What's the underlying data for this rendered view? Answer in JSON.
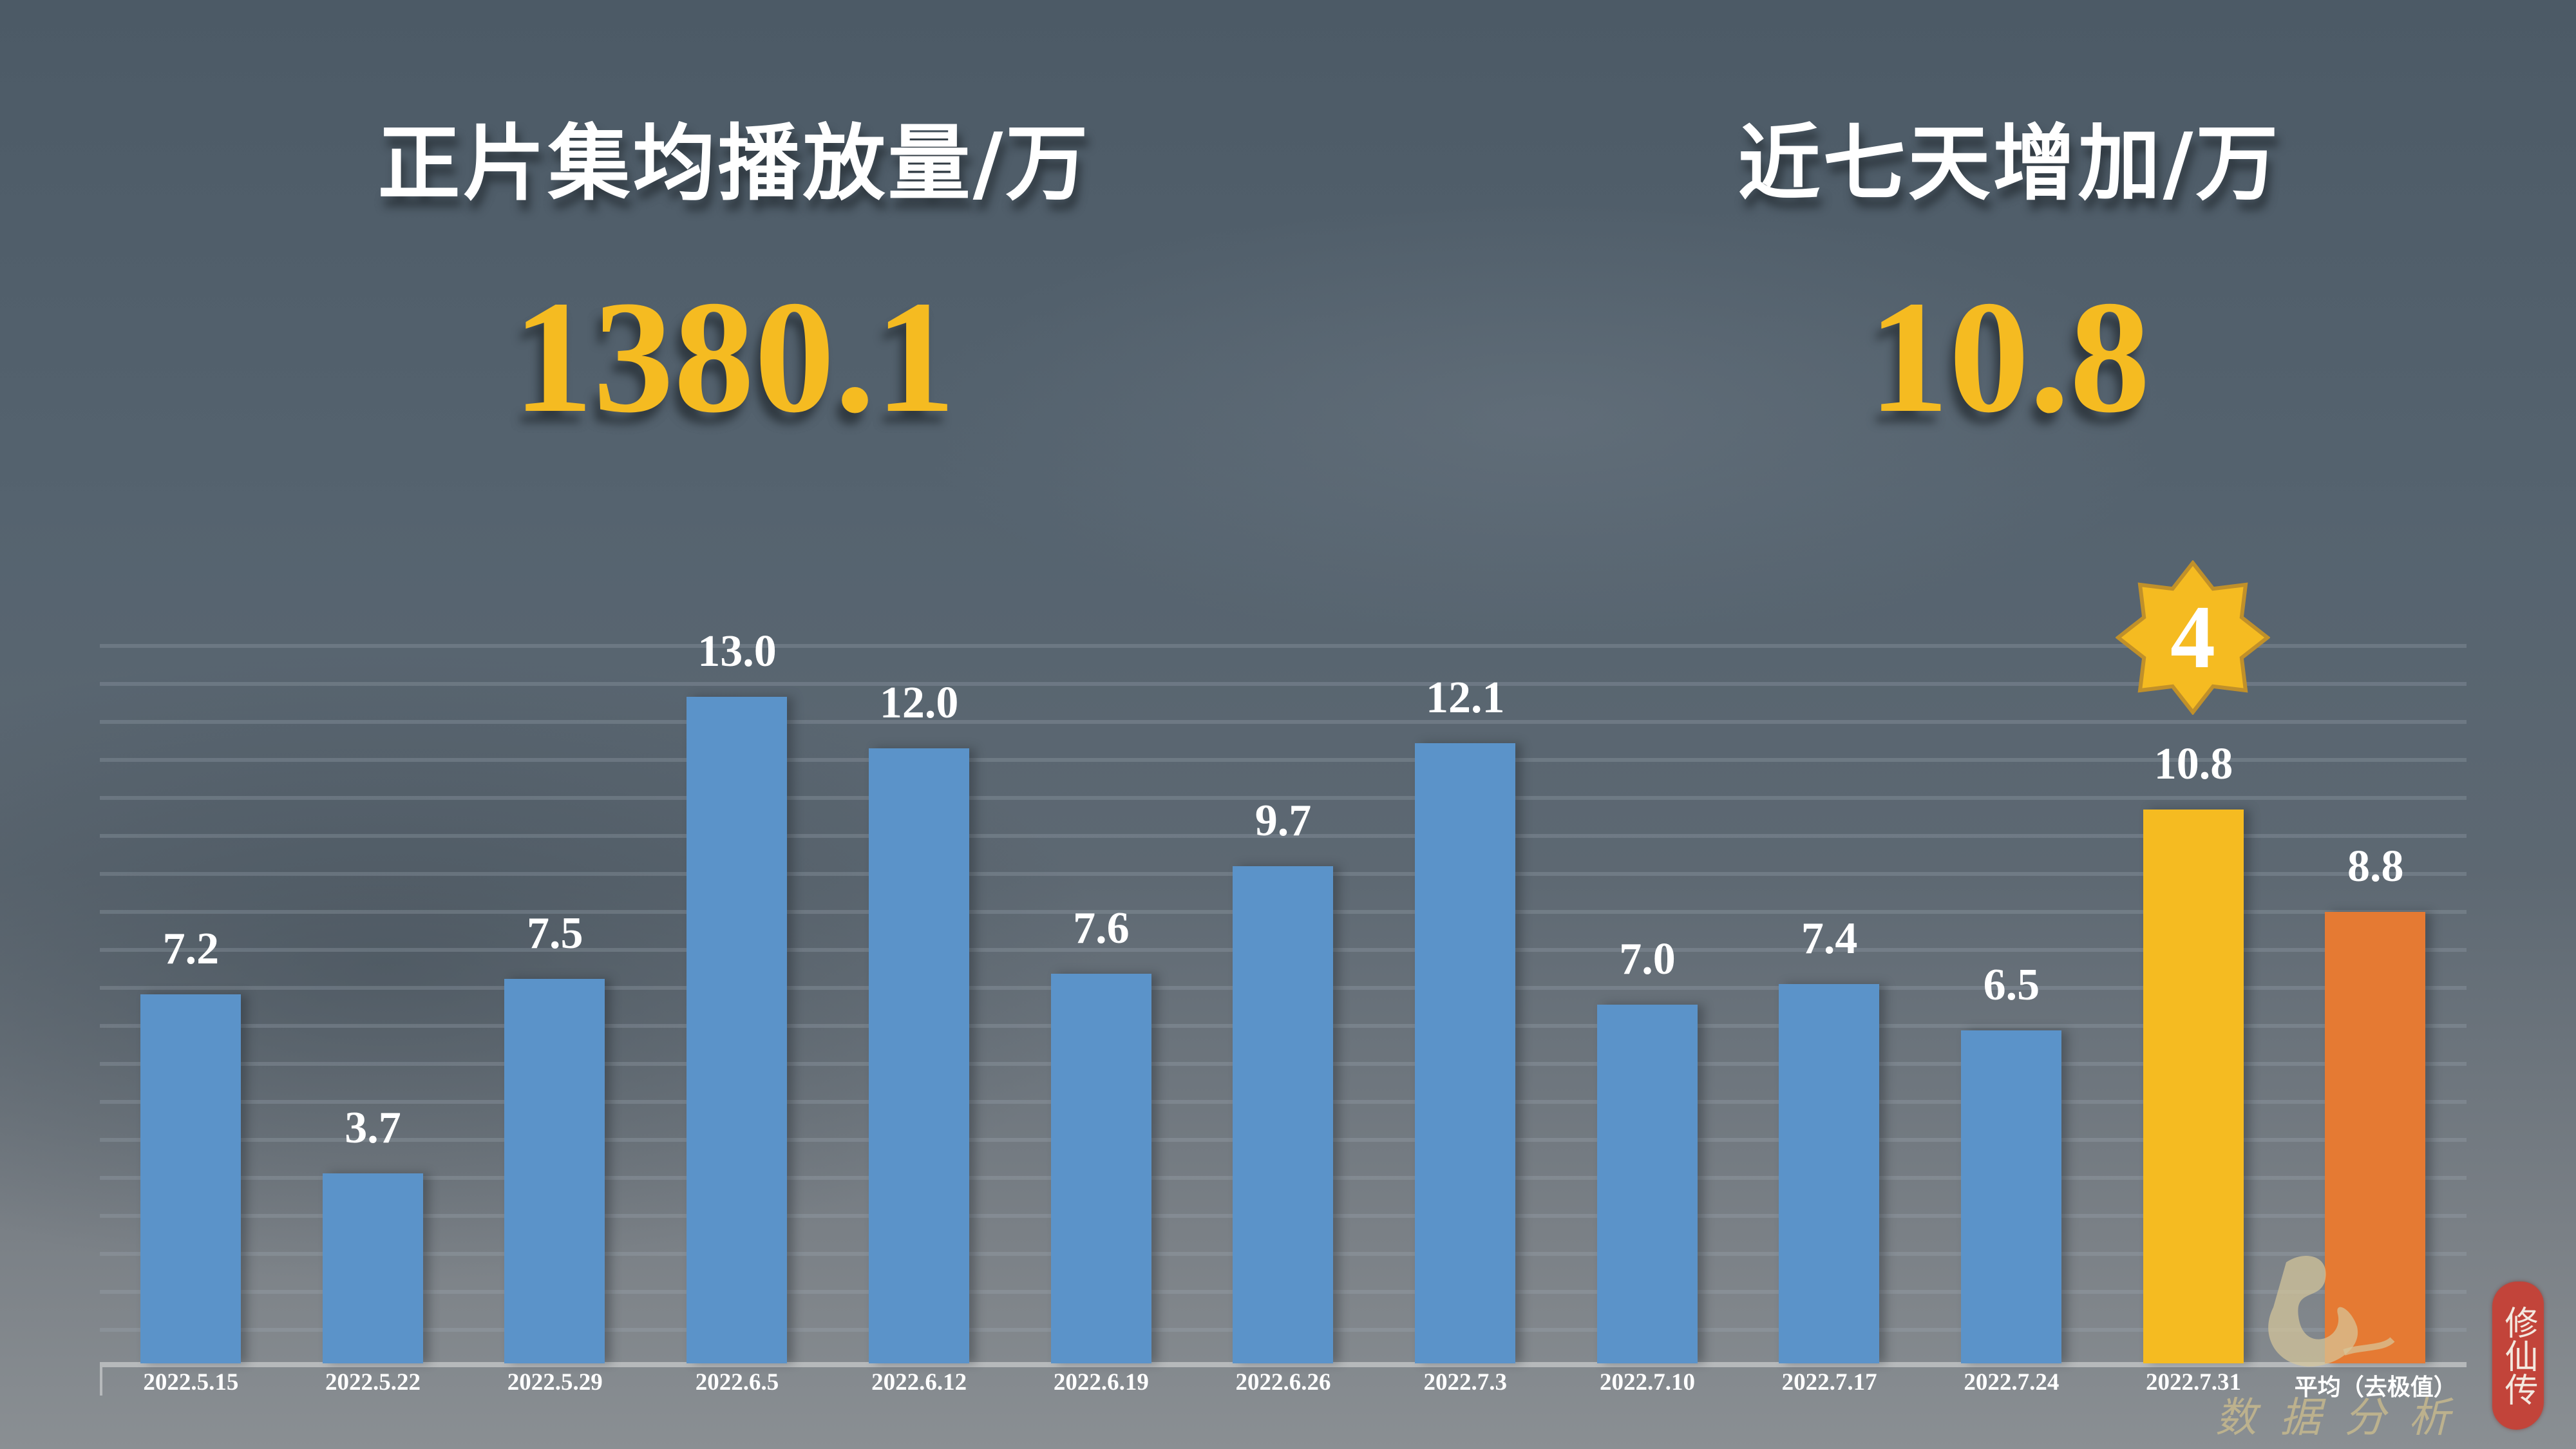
{
  "stats": {
    "left": {
      "title": "正片集均播放量/万",
      "value": "1380.1"
    },
    "right": {
      "title": "近七天增加/万",
      "value": "10.8"
    }
  },
  "colors": {
    "bar_default": "#5b93c9",
    "bar_highlight": "#f5bb21",
    "bar_average": "#e57a33",
    "value_accent": "#f5bb21",
    "badge_fill": "#f5bb21",
    "badge_stroke": "#c0902a"
  },
  "rank_badge": {
    "value": "4",
    "icon": "eight-point-star-icon"
  },
  "watermark": {
    "text": "数据分析",
    "seal_text": "修仙传"
  },
  "chart_data": {
    "type": "bar",
    "title": "",
    "xlabel": "",
    "ylabel": "",
    "ylim": [
      0,
      14
    ],
    "grid": true,
    "legend": null,
    "categories": [
      "2022.5.15",
      "2022.5.22",
      "2022.5.29",
      "2022.6.5",
      "2022.6.12",
      "2022.6.19",
      "2022.6.26",
      "2022.7.3",
      "2022.7.10",
      "2022.7.17",
      "2022.7.24",
      "2022.7.31",
      "平均（去极值）"
    ],
    "values": [
      7.2,
      3.7,
      7.5,
      13.0,
      12.0,
      7.6,
      9.7,
      12.1,
      7.0,
      7.4,
      6.5,
      10.8,
      8.8
    ],
    "value_labels": [
      "7.2",
      "3.7",
      "7.5",
      "13.0",
      "12.0",
      "7.6",
      "9.7",
      "12.1",
      "7.0",
      "7.4",
      "6.5",
      "10.8",
      "8.8"
    ],
    "bar_colors": [
      "#5b93c9",
      "#5b93c9",
      "#5b93c9",
      "#5b93c9",
      "#5b93c9",
      "#5b93c9",
      "#5b93c9",
      "#5b93c9",
      "#5b93c9",
      "#5b93c9",
      "#5b93c9",
      "#f5bb21",
      "#e57a33"
    ],
    "annotations": [
      {
        "category": "2022.7.31",
        "text": "4",
        "shape": "eight-point-star"
      }
    ]
  }
}
